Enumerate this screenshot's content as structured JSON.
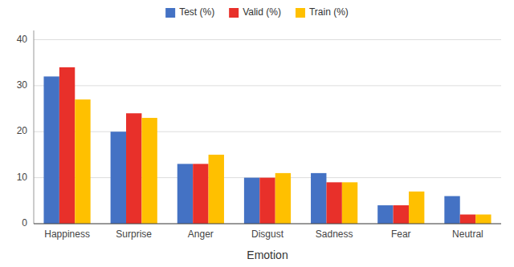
{
  "chart_data": {
    "type": "bar",
    "xlabel": "Emotion",
    "categories": [
      "Happiness",
      "Surprise",
      "Anger",
      "Disgust",
      "Sadness",
      "Fear",
      "Neutral"
    ],
    "series": [
      {
        "name": "Test (%)",
        "color": "#4472C4",
        "values": [
          32,
          20,
          13,
          10,
          11,
          4,
          6
        ]
      },
      {
        "name": "Valid (%)",
        "color": "#E8302A",
        "values": [
          34,
          24,
          13,
          10,
          9,
          4,
          2
        ]
      },
      {
        "name": "Train (%)",
        "color": "#FFC000",
        "values": [
          27,
          23,
          15,
          11,
          9,
          7,
          2
        ]
      }
    ],
    "ylim": [
      0,
      42
    ],
    "yticks": [
      0,
      10,
      20,
      30,
      40
    ],
    "grid": true,
    "legend": "top"
  }
}
